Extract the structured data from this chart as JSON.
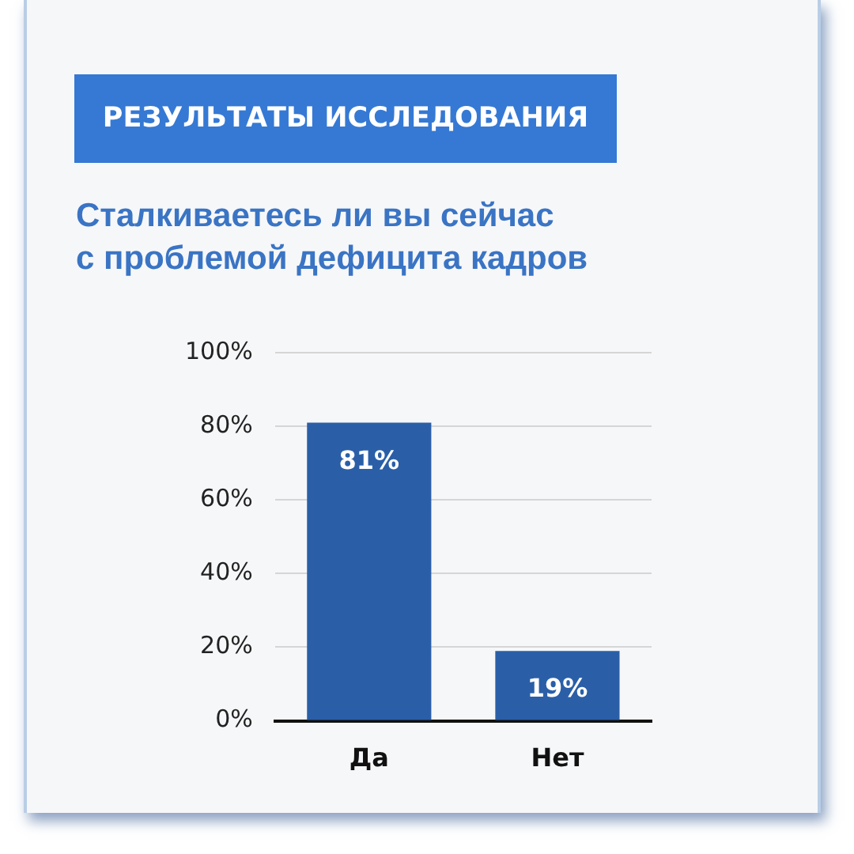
{
  "chart_data": {
    "type": "bar",
    "title": "РЕЗУЛЬТАТЫ ИССЛЕДОВАНИЯ",
    "subtitle": "Сталкиваетесь ли вы сейчас\nс проблемой дефицита кадров",
    "categories": [
      "Да",
      "Нет"
    ],
    "values": [
      81,
      19
    ],
    "color": "#2a5fa8",
    "value_labels": [
      "81%",
      "19%"
    ],
    "ylim": [
      0,
      100
    ],
    "yticks": [
      {
        "value": 0,
        "label": "0%"
      },
      {
        "value": 20,
        "label": "20%"
      },
      {
        "value": 40,
        "label": "40%"
      },
      {
        "value": 60,
        "label": "60%"
      },
      {
        "value": 80,
        "label": "80%"
      },
      {
        "value": 100,
        "label": "100%"
      }
    ],
    "grid": "y"
  }
}
